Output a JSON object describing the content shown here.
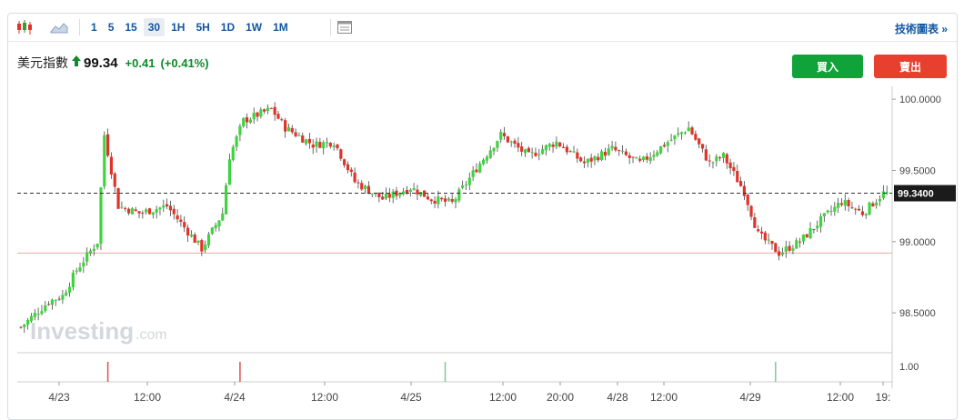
{
  "toolbar": {
    "intervals": [
      "1",
      "5",
      "15",
      "30",
      "1H",
      "5H",
      "1D",
      "1W",
      "1M"
    ],
    "active_interval": "30",
    "tech_link": "技術圖表 »"
  },
  "quote": {
    "name": "美元指數",
    "price": "99.34",
    "change": "+0.41",
    "change_pct": "(+0.41%)"
  },
  "buttons": {
    "buy": "買入",
    "sell": "賣出"
  },
  "watermark": {
    "brand": "Investing",
    "suffix": ".com"
  },
  "colors": {
    "up": "#3fd43f",
    "down": "#e0332a",
    "accent": "#1256a0",
    "buy": "#10a33a",
    "sell": "#e8402f"
  },
  "chart_data": {
    "type": "candlestick",
    "symbol": "美元指數",
    "interval": "30",
    "current_price": 99.34,
    "current_price_label": "99.3400",
    "reference_line": 98.92,
    "ylim": [
      98.22,
      100.09
    ],
    "yticks": [
      {
        "value": 100.0,
        "label": "100.0000"
      },
      {
        "value": 99.5,
        "label": "99.5000"
      },
      {
        "value": 99.0,
        "label": "99.0000"
      },
      {
        "value": 98.5,
        "label": "98.5000"
      }
    ],
    "xticks": [
      "4/23",
      "12:00",
      "4/24",
      "12:00",
      "4/25",
      "12:00",
      "20:00",
      "4/28",
      "12:00",
      "4/29",
      "12:00",
      "19:"
    ],
    "volume_label": "1.00",
    "volume_markers": [
      {
        "index": 25,
        "color": "red"
      },
      {
        "index": 63,
        "color": "red"
      },
      {
        "index": 122,
        "color": "green"
      },
      {
        "index": 217,
        "color": "green"
      }
    ],
    "trend": [
      [
        0,
        98.4
      ],
      [
        8,
        98.58
      ],
      [
        12,
        98.62
      ],
      [
        16,
        98.8
      ],
      [
        22,
        99.0
      ],
      [
        24,
        99.75
      ],
      [
        28,
        99.25
      ],
      [
        34,
        99.2
      ],
      [
        42,
        99.25
      ],
      [
        52,
        98.95
      ],
      [
        58,
        99.2
      ],
      [
        60,
        99.6
      ],
      [
        64,
        99.85
      ],
      [
        72,
        99.93
      ],
      [
        76,
        99.8
      ],
      [
        84,
        99.68
      ],
      [
        90,
        99.7
      ],
      [
        96,
        99.42
      ],
      [
        104,
        99.3
      ],
      [
        112,
        99.38
      ],
      [
        118,
        99.3
      ],
      [
        124,
        99.27
      ],
      [
        132,
        99.55
      ],
      [
        138,
        99.75
      ],
      [
        146,
        99.6
      ],
      [
        154,
        99.7
      ],
      [
        162,
        99.55
      ],
      [
        170,
        99.65
      ],
      [
        178,
        99.55
      ],
      [
        186,
        99.7
      ],
      [
        192,
        99.8
      ],
      [
        198,
        99.55
      ],
      [
        202,
        99.6
      ],
      [
        208,
        99.35
      ],
      [
        212,
        99.05
      ],
      [
        218,
        98.92
      ],
      [
        224,
        99.0
      ],
      [
        230,
        99.15
      ],
      [
        236,
        99.28
      ],
      [
        242,
        99.2
      ],
      [
        248,
        99.34
      ]
    ]
  }
}
